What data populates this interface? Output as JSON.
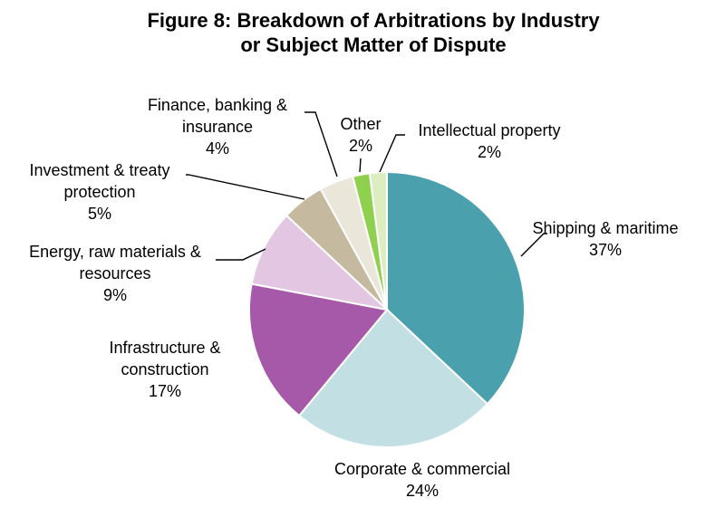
{
  "chart_data": {
    "type": "pie",
    "title": "Figure 8: Breakdown of Arbitrations by Industry or Subject Matter of Dispute",
    "title_lines": [
      "Figure 8: Breakdown of Arbitrations by Industry",
      "or Subject Matter of Dispute"
    ],
    "slices": [
      {
        "name": "Shipping & maritime",
        "label_lines": [
          "Shipping & maritime"
        ],
        "value": 37,
        "pct": "37%",
        "color": "#4BA0AD"
      },
      {
        "name": "Corporate & commercial",
        "label_lines": [
          "Corporate & commercial"
        ],
        "value": 24,
        "pct": "24%",
        "color": "#C2DFE3"
      },
      {
        "name": "Infrastructure & construction",
        "label_lines": [
          "Infrastructure &",
          "construction"
        ],
        "value": 17,
        "pct": "17%",
        "color": "#A659A9"
      },
      {
        "name": "Energy, raw materials & resources",
        "label_lines": [
          "Energy, raw materials &",
          "resources"
        ],
        "value": 9,
        "pct": "9%",
        "color": "#E3C6E2"
      },
      {
        "name": "Investment & treaty protection",
        "label_lines": [
          "Investment & treaty",
          "protection"
        ],
        "value": 5,
        "pct": "5%",
        "color": "#C5BA9F"
      },
      {
        "name": "Finance, banking & insurance",
        "label_lines": [
          "Finance, banking &",
          "insurance"
        ],
        "value": 4,
        "pct": "4%",
        "color": "#EAE6DA"
      },
      {
        "name": "Other",
        "label_lines": [
          "Other"
        ],
        "value": 2,
        "pct": "2%",
        "color": "#8FD14F"
      },
      {
        "name": "Intellectual property",
        "label_lines": [
          "Intellectual property"
        ],
        "value": 2,
        "pct": "2%",
        "color": "#DCEDC2"
      }
    ]
  }
}
